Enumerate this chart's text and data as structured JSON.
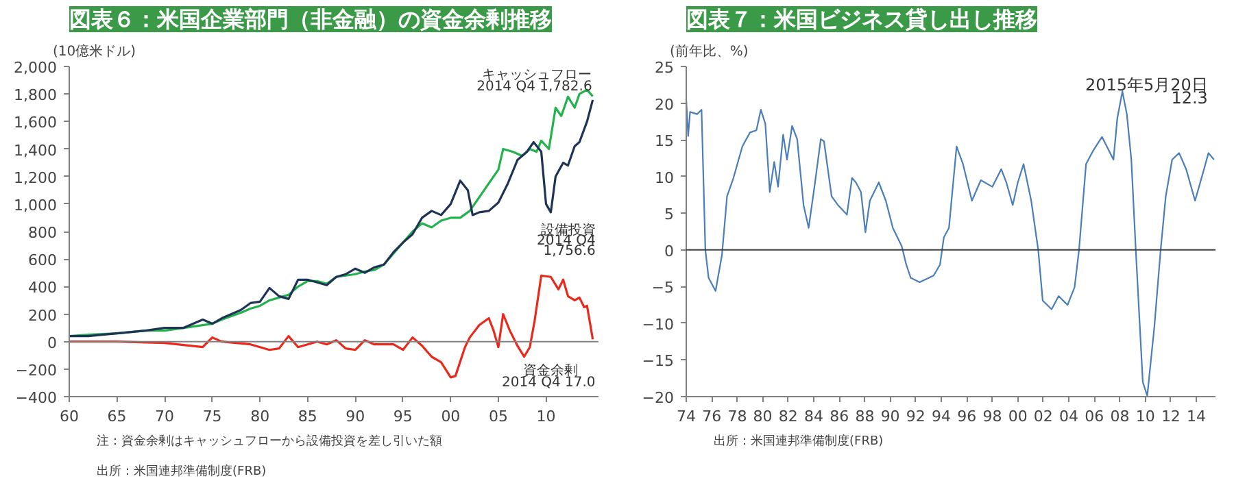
{
  "chart_data": [
    {
      "type": "line",
      "title": "図表６：米国企業部門（非金融）の資金余剰推移",
      "ylabel": "(10億米ドル)",
      "xlim": [
        1960,
        2015.5
      ],
      "xticks": [
        {
          "value": 1960,
          "label": "60"
        },
        {
          "value": 1965,
          "label": "65"
        },
        {
          "value": 1970,
          "label": "70"
        },
        {
          "value": 1975,
          "label": "75"
        },
        {
          "value": 1980,
          "label": "80"
        },
        {
          "value": 1985,
          "label": "85"
        },
        {
          "value": 1990,
          "label": "90"
        },
        {
          "value": 1995,
          "label": "95"
        },
        {
          "value": 2000,
          "label": "00"
        },
        {
          "value": 2005,
          "label": "05"
        },
        {
          "value": 2010,
          "label": "10"
        }
      ],
      "ylim": [
        -400,
        2000
      ],
      "yticks": [
        -400,
        -200,
        0,
        200,
        400,
        600,
        800,
        {
          "value": 1000,
          "label": "1,000"
        },
        {
          "value": 1200,
          "label": "1,200"
        },
        {
          "value": 1400,
          "label": "1,400"
        },
        {
          "value": 1600,
          "label": "1,600"
        },
        {
          "value": 1800,
          "label": "1,800"
        },
        {
          "value": 2000,
          "label": "2,000"
        }
      ],
      "grid": false,
      "ref_lines": [
        {
          "axis": "y",
          "value": 0,
          "color": "#808080"
        }
      ],
      "series": [
        {
          "color": "#22b24c",
          "x": [
            1960,
            1962,
            1965,
            1968,
            1970,
            1972,
            1974,
            1975,
            1976,
            1978,
            1979,
            1980,
            1981,
            1982,
            1983,
            1984,
            1985,
            1986,
            1987,
            1988,
            1989,
            1990,
            1991,
            1992,
            1993,
            1994,
            1995,
            1996,
            1997,
            1998,
            1999,
            2000,
            2001,
            2002,
            2003,
            2004,
            2005,
            2005.5,
            2006.5,
            2007.5,
            2008.3,
            2009,
            2009.5,
            2010.3,
            2011,
            2011.6,
            2012.3,
            2013,
            2013.5,
            2014.3,
            2014.9
          ],
          "values": [
            40,
            50,
            60,
            80,
            80,
            100,
            120,
            130,
            160,
            210,
            240,
            260,
            300,
            320,
            340,
            400,
            440,
            440,
            420,
            470,
            480,
            490,
            510,
            520,
            560,
            640,
            720,
            800,
            860,
            830,
            880,
            900,
            900,
            950,
            1050,
            1150,
            1250,
            1400,
            1380,
            1350,
            1400,
            1380,
            1460,
            1400,
            1700,
            1640,
            1780,
            1700,
            1800,
            1830,
            1782.6
          ]
        },
        {
          "color": "#1f3356",
          "x": [
            1960,
            1962,
            1965,
            1968,
            1970,
            1972,
            1974,
            1975,
            1976,
            1978,
            1979,
            1980,
            1981,
            1982,
            1983,
            1984,
            1985,
            1986,
            1987,
            1988,
            1989,
            1990,
            1991,
            1992,
            1993,
            1994,
            1995,
            1996,
            1997,
            1998,
            1999,
            2000,
            2001,
            2001.8,
            2002.3,
            2003,
            2004,
            2005,
            2006,
            2007,
            2008,
            2008.7,
            2009.5,
            2010,
            2010.5,
            2011,
            2011.8,
            2012.3,
            2013,
            2013.5,
            2014.3,
            2014.9
          ],
          "values": [
            40,
            40,
            60,
            80,
            100,
            100,
            160,
            130,
            170,
            230,
            280,
            290,
            390,
            330,
            310,
            450,
            450,
            430,
            410,
            470,
            490,
            530,
            500,
            540,
            560,
            650,
            720,
            780,
            900,
            950,
            920,
            1000,
            1170,
            1100,
            920,
            940,
            950,
            1010,
            1150,
            1320,
            1380,
            1450,
            1380,
            1000,
            940,
            1200,
            1300,
            1280,
            1420,
            1450,
            1600,
            1756.6
          ]
        },
        {
          "color": "#e8291c",
          "x": [
            1960,
            1965,
            1970,
            1974,
            1975,
            1976,
            1979,
            1981,
            1982,
            1983,
            1984,
            1986,
            1987,
            1988,
            1989,
            1990,
            1991,
            1992,
            1994,
            1995,
            1996,
            1997,
            1998,
            1999,
            2000,
            2000.5,
            2001.5,
            2002,
            2003,
            2004,
            2004.5,
            2005,
            2005.5,
            2006.2,
            2007,
            2007.7,
            2008.3,
            2008.8,
            2009.5,
            2010.5,
            2011.3,
            2011.8,
            2012.3,
            2013,
            2013.5,
            2014,
            2014.3,
            2014.9
          ],
          "values": [
            0,
            0,
            -10,
            -40,
            30,
            0,
            -20,
            -60,
            -50,
            40,
            -40,
            0,
            -20,
            10,
            -50,
            -60,
            10,
            -20,
            -20,
            -60,
            30,
            -30,
            -110,
            -150,
            -260,
            -250,
            -40,
            30,
            120,
            170,
            80,
            -40,
            200,
            80,
            -30,
            -110,
            -40,
            150,
            480,
            470,
            380,
            450,
            330,
            300,
            320,
            250,
            260,
            17.0
          ]
        }
      ],
      "annotations": [
        "キャッシュフロー",
        "2014 Q4  1,782.6",
        "設備投資",
        "2014 Q4",
        "1,756.6",
        "資金余剰",
        "2014 Q4  17.0",
        "注：資金余剰はキャッシュフローから設備投資を差し引いた額",
        "出所：米国連邦準備制度(FRB)"
      ]
    },
    {
      "type": "line",
      "title": "図表７：米国ビジネス貸し出し推移",
      "ylabel": "(前年比、%)",
      "xlim": [
        1974,
        2015.5
      ],
      "xticks": [
        {
          "value": 1974,
          "label": "74"
        },
        {
          "value": 1976,
          "label": "76"
        },
        {
          "value": 1978,
          "label": "78"
        },
        {
          "value": 1980,
          "label": "80"
        },
        {
          "value": 1982,
          "label": "82"
        },
        {
          "value": 1984,
          "label": "84"
        },
        {
          "value": 1986,
          "label": "86"
        },
        {
          "value": 1988,
          "label": "88"
        },
        {
          "value": 1990,
          "label": "90"
        },
        {
          "value": 1992,
          "label": "92"
        },
        {
          "value": 1994,
          "label": "94"
        },
        {
          "value": 1996,
          "label": "96"
        },
        {
          "value": 1998,
          "label": "98"
        },
        {
          "value": 2000,
          "label": "00"
        },
        {
          "value": 2002,
          "label": "02"
        },
        {
          "value": 2004,
          "label": "04"
        },
        {
          "value": 2006,
          "label": "06"
        },
        {
          "value": 2008,
          "label": "08"
        },
        {
          "value": 2010,
          "label": "10"
        },
        {
          "value": 2012,
          "label": "12"
        },
        {
          "value": 2014,
          "label": "14"
        }
      ],
      "ylim": [
        -20,
        25
      ],
      "yticks": [
        -20,
        -15,
        -10,
        -5,
        0,
        5,
        10,
        15,
        20,
        25
      ],
      "grid": false,
      "ref_lines": [
        {
          "axis": "y",
          "value": 0,
          "color": "#404040"
        }
      ],
      "series": [
        {
          "color": "#4a7ebb",
          "x": [
            1974.0,
            1974.15,
            1974.3,
            1974.85,
            1975.2,
            1975.5,
            1975.75,
            1976.3,
            1976.8,
            1977.2,
            1977.7,
            1978.4,
            1979,
            1979.5,
            1979.85,
            1980.2,
            1980.55,
            1980.9,
            1981.2,
            1981.6,
            1981.9,
            1982.3,
            1982.7,
            1983.2,
            1983.6,
            1984.1,
            1984.55,
            1984.8,
            1985.4,
            1985.9,
            1986.6,
            1987,
            1987.3,
            1987.7,
            1988.05,
            1988.4,
            1989.1,
            1989.65,
            1990.2,
            1990.9,
            1991.25,
            1991.6,
            1992.3,
            1993.4,
            1993.9,
            1994.2,
            1994.6,
            1995.2,
            1995.7,
            1996.4,
            1997.1,
            1998,
            1998.7,
            1999.1,
            1999.6,
            2000,
            2000.45,
            2001.05,
            2001.6,
            2001.95,
            2002.65,
            2003.2,
            2003.9,
            2004.45,
            2004.8,
            2005.35,
            2005.9,
            2006.6,
            2007.5,
            2007.8,
            2008.2,
            2008.55,
            2008.9,
            2009.25,
            2009.8,
            2010.15,
            2010.7,
            2011.2,
            2011.6,
            2012.1,
            2012.65,
            2013.2,
            2013.9,
            2014.6,
            2014.95,
            2015.38
          ],
          "values": [
            20.5,
            15.5,
            18.8,
            18.5,
            19.1,
            0,
            -3.8,
            -5.6,
            -0.7,
            7.3,
            9.8,
            14.1,
            16,
            16.3,
            19.1,
            17.2,
            7.9,
            12,
            8.6,
            15.7,
            12.3,
            16.9,
            15.1,
            6.1,
            3,
            9.2,
            15.1,
            14.8,
            7.3,
            6.1,
            4.8,
            9.8,
            9.2,
            7.9,
            2.4,
            6.7,
            9.2,
            6.7,
            3,
            0.5,
            -2,
            -3.8,
            -4.4,
            -3.5,
            -2,
            1.7,
            3,
            14.1,
            11.7,
            6.7,
            9.5,
            8.6,
            11,
            9.2,
            6.1,
            9.2,
            11.7,
            6.7,
            0,
            -6.9,
            -8.1,
            -6.3,
            -7.5,
            -5.1,
            0,
            11.7,
            13.5,
            15.4,
            12.3,
            17.9,
            21.6,
            18.5,
            12.3,
            0,
            -18,
            -19.9,
            -10.6,
            0,
            7.3,
            12.3,
            13.2,
            11,
            6.7,
            11,
            13.2,
            12.3
          ]
        }
      ],
      "annotations": [
        "2015年5月20日",
        "12.3",
        "出所：米国連邦準備制度(FRB)"
      ]
    }
  ]
}
